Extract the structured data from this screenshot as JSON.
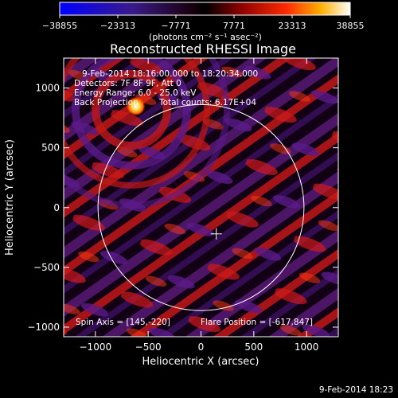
{
  "chart_data": {
    "type": "heatmap",
    "title": "Reconstructed RHESSI Image",
    "xlabel": "Heliocentric X (arcsec)",
    "ylabel": "Heliocentric Y (arcsec)",
    "xlim": [
      -1300,
      1300
    ],
    "ylim": [
      -1080,
      1250
    ],
    "xticks": [
      -1000,
      -500,
      0,
      500,
      1000
    ],
    "yticks": [
      -1000,
      -500,
      0,
      500,
      1000
    ],
    "colorbar": {
      "ticks": [
        -38855,
        -23313,
        -7771,
        7771,
        23313,
        38855
      ],
      "range": [
        -38855,
        38855
      ],
      "unit_label": "(photons cm⁻² s⁻¹ asec⁻²)"
    },
    "annotations": {
      "time_range": "9-Feb-2014 18:16:00.000 to 18:20:34.000",
      "detectors": "Detectors: 7F 8F 9F, Att 0",
      "energy": "Energy Range: 6.0 - 25.0 keV",
      "method": "Back Projection",
      "counts": "Total counts: 6.17E+04",
      "spin_axis": "Spin Axis = [145,-220]",
      "flare_position": "Flare Position = [-617,847]"
    },
    "flare_source": {
      "x": -617,
      "y": 847
    },
    "solar_limb_radius_arcsec": 975,
    "sun_center_marker": {
      "x": 145,
      "y": -220
    }
  },
  "footer": {
    "timestamp": "9-Feb-2014 18:23"
  }
}
